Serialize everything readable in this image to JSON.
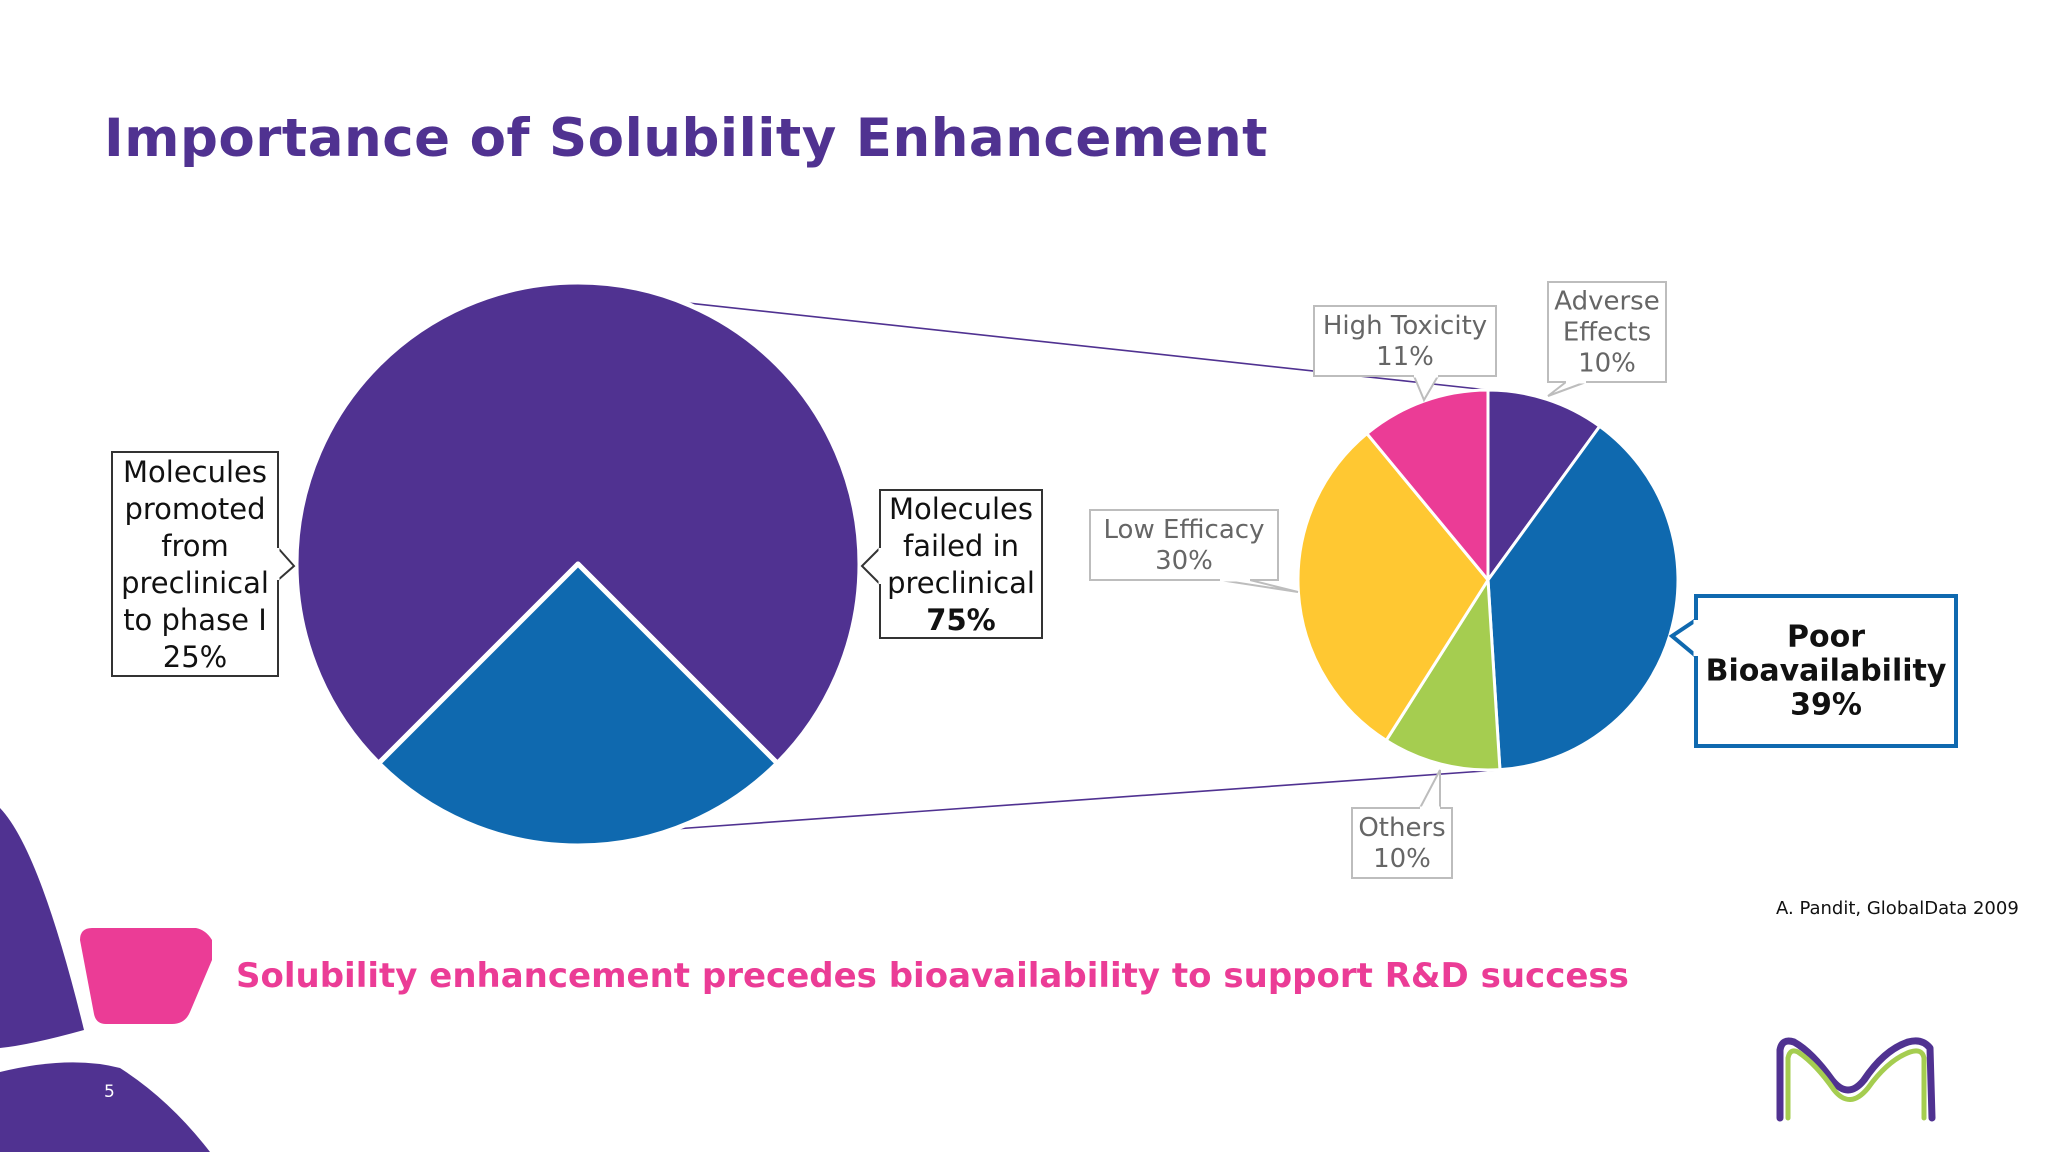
{
  "slide": {
    "title": "Importance of Solubility Enhancement",
    "tagline": "Solubility enhancement precedes bioavailability to support R&D success",
    "source": "A. Pandit, GlobalData 2009",
    "page_number": "5",
    "brand_logo_icon": "merck-m-logo-icon"
  },
  "colors": {
    "title_purple": "#503291",
    "tagline_pink": "#eb3c96",
    "purple": "#503291",
    "blue": "#0f69af",
    "yellow": "#ffc832",
    "green": "#a5cd50",
    "pink": "#eb3c96",
    "highlight_border": "#0f69af",
    "callout_border": "#bdbdbd"
  },
  "chart_data": [
    {
      "type": "pie",
      "slices": [
        {
          "name": "Molecules failed in preclinical",
          "value": 75,
          "label_lines": [
            "Molecules",
            "failed in",
            "preclinical"
          ],
          "value_label": "75%",
          "color": "#503291"
        },
        {
          "name": "Molecules promoted from preclinical to phase I",
          "value": 25,
          "label_lines": [
            "Molecules",
            "promoted",
            "from",
            "preclinical",
            "to phase I"
          ],
          "value_label": "25%",
          "color": "#0f69af"
        }
      ]
    },
    {
      "type": "pie",
      "slices": [
        {
          "name": "Adverse Effects",
          "value": 10,
          "label_lines": [
            "Adverse",
            "Effects"
          ],
          "value_label": "10%",
          "color": "#503291"
        },
        {
          "name": "Poor Bioavailability",
          "value": 39,
          "label_lines": [
            "Poor",
            "Bioavailability"
          ],
          "value_label": "39%",
          "color": "#0f69af",
          "highlight": true
        },
        {
          "name": "Others",
          "value": 10,
          "label_lines": [
            "Others"
          ],
          "value_label": "10%",
          "color": "#a5cd50"
        },
        {
          "name": "Low Efficacy",
          "value": 30,
          "label_lines": [
            "Low Efficacy"
          ],
          "value_label": "30%",
          "color": "#ffc832"
        },
        {
          "name": "High Toxicity",
          "value": 11,
          "label_lines": [
            "High Toxicity"
          ],
          "value_label": "11%",
          "color": "#eb3c96"
        }
      ]
    }
  ]
}
